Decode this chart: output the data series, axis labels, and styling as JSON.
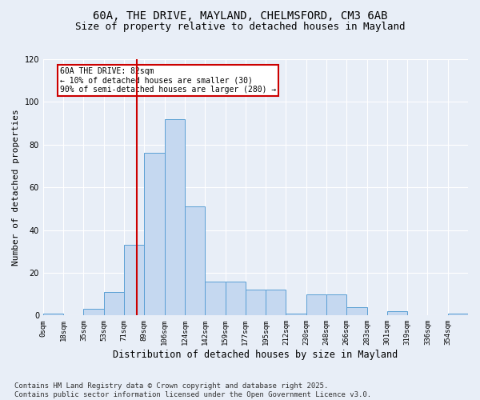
{
  "title_line1": "60A, THE DRIVE, MAYLAND, CHELMSFORD, CM3 6AB",
  "title_line2": "Size of property relative to detached houses in Mayland",
  "xlabel": "Distribution of detached houses by size in Mayland",
  "ylabel": "Number of detached properties",
  "footnote": "Contains HM Land Registry data © Crown copyright and database right 2025.\nContains public sector information licensed under the Open Government Licence v3.0.",
  "bin_labels": [
    "0sqm",
    "18sqm",
    "35sqm",
    "53sqm",
    "71sqm",
    "89sqm",
    "106sqm",
    "124sqm",
    "142sqm",
    "159sqm",
    "177sqm",
    "195sqm",
    "212sqm",
    "230sqm",
    "248sqm",
    "266sqm",
    "283sqm",
    "301sqm",
    "319sqm",
    "336sqm",
    "354sqm"
  ],
  "bar_values": [
    1,
    0,
    3,
    11,
    33,
    76,
    92,
    51,
    16,
    16,
    12,
    12,
    1,
    10,
    10,
    4,
    0,
    2,
    0,
    0,
    1
  ],
  "bar_color": "#c5d8f0",
  "bar_edge_color": "#5a9fd4",
  "ylim": [
    0,
    120
  ],
  "yticks": [
    0,
    20,
    40,
    60,
    80,
    100,
    120
  ],
  "vline_color": "#cc0000",
  "annotation_text": "60A THE DRIVE: 82sqm\n← 10% of detached houses are smaller (30)\n90% of semi-detached houses are larger (280) →",
  "bg_color": "#e8eef7",
  "plot_bg_color": "#e8eef7",
  "grid_color": "#ffffff",
  "title_fontsize": 10,
  "subtitle_fontsize": 9,
  "footnote_fontsize": 6.5,
  "tick_fontsize": 6.5,
  "ylabel_fontsize": 8,
  "xlabel_fontsize": 8.5
}
